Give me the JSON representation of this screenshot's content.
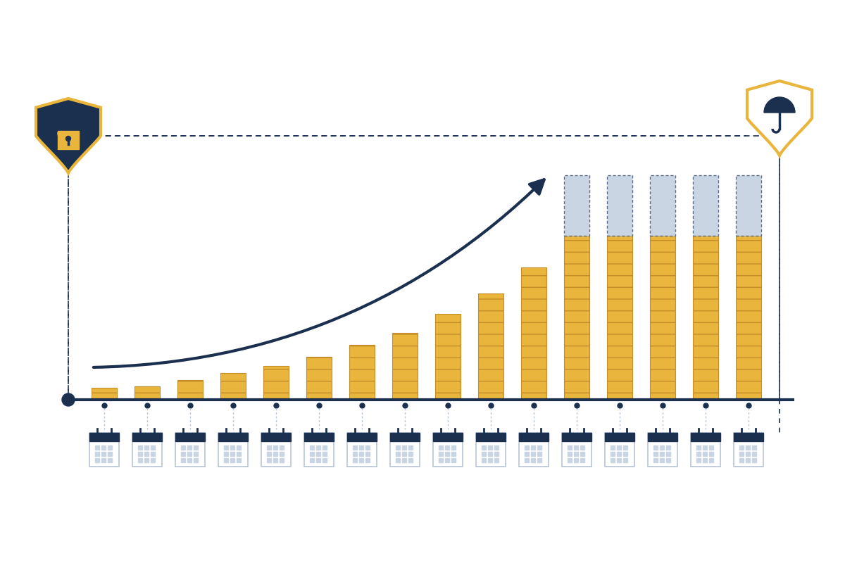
{
  "chart_data": {
    "type": "bar",
    "stacked": true,
    "tick_labels": false,
    "categories": [
      null,
      null,
      null,
      null,
      null,
      null,
      null,
      null,
      null,
      null,
      null,
      null,
      null,
      null,
      null,
      null
    ],
    "series": [
      {
        "color": "#e9b53c",
        "values": [
          17,
          19,
          28,
          38,
          48,
          61,
          78,
          95,
          122,
          151,
          188,
          233,
          233,
          233,
          233,
          233
        ]
      },
      {
        "color": "#c9d5e2",
        "values": [
          0,
          0,
          0,
          0,
          0,
          0,
          0,
          0,
          0,
          0,
          0,
          86,
          86,
          86,
          86,
          86
        ]
      }
    ],
    "ylim": [
      0,
      375
    ]
  }
}
